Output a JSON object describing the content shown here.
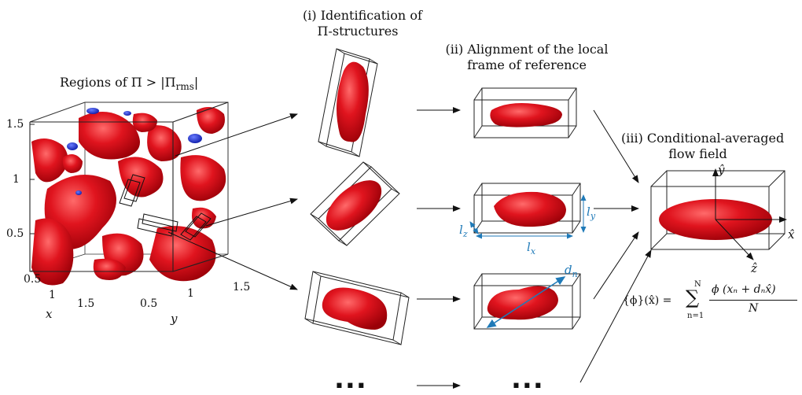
{
  "titles": {
    "regions": "Regions of Π > |Π",
    "regions_sub": "rms",
    "regions_end": "|",
    "step1_line1": "(i) Identification of",
    "step1_line2": "Π-structures",
    "step2_line1": "(ii) Alignment of the local",
    "step2_line2": "frame of reference",
    "step3_line1": "(iii) Conditional-averaged",
    "step3_line2": "flow field"
  },
  "cube_axes": {
    "z_ticks": [
      "1.5",
      "1",
      "0.5"
    ],
    "x_ticks": [
      "0.5",
      "1",
      "1.5"
    ],
    "y_ticks": [
      "0.5",
      "1",
      "1.5"
    ],
    "x_label": "x",
    "y_label": "y"
  },
  "box_labels": {
    "lx": "l",
    "lx_sub": "x",
    "ly": "l",
    "ly_sub": "y",
    "lz": "l",
    "lz_sub": "z",
    "dn": "d",
    "dn_sub": "n"
  },
  "frame_axes": {
    "y_hat": "ŷ",
    "x_hat": "x̂",
    "z_hat": "ẑ"
  },
  "ellipsis": {
    "left": "...",
    "right": "..."
  },
  "formula": {
    "lhs": "{ϕ}(x̂) =",
    "sum_top": "N",
    "sum_bottom": "n=1",
    "numerator": "ϕ (xₙ + dₙx̂)",
    "denominator": "N"
  },
  "colors": {
    "structure_red": "#d8121c",
    "structure_blue": "#1a2fd0",
    "annotation_blue": "#1f7ab8",
    "frame": "#222222"
  }
}
